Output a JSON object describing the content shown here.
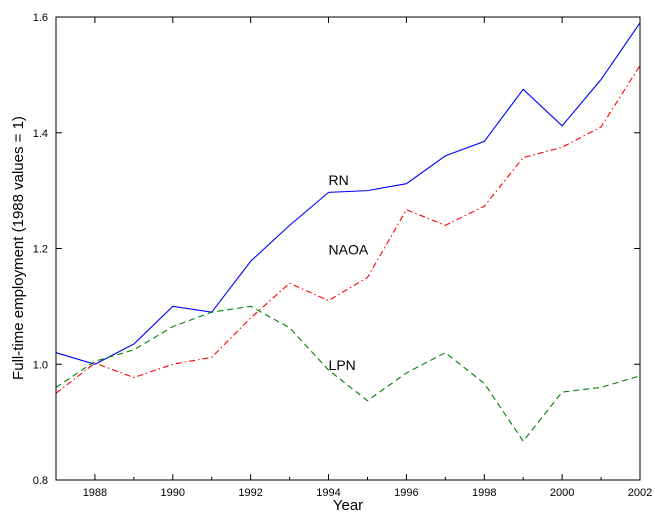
{
  "chart_data": {
    "type": "line",
    "title": "",
    "xlabel": "Year",
    "ylabel": "Full-time employment (1988 values = 1)",
    "xlim": [
      1987,
      2002
    ],
    "ylim": [
      0.8,
      1.6
    ],
    "x_ticks": [
      1988,
      1990,
      1992,
      1994,
      1996,
      1998,
      2000,
      2002
    ],
    "y_ticks": [
      0.8,
      1.0,
      1.2,
      1.4,
      1.6
    ],
    "x_tick_labels": [
      "1988",
      "1990",
      "1992",
      "1994",
      "1996",
      "1998",
      "2000",
      "2002"
    ],
    "y_tick_labels": [
      "0.8",
      "1.0",
      "1.2",
      "1.4",
      "1.6"
    ],
    "grid": false,
    "legend": "none",
    "x": [
      1987,
      1988,
      1989,
      1990,
      1991,
      1992,
      1993,
      1994,
      1995,
      1996,
      1997,
      1998,
      1999,
      2000,
      2001,
      2002
    ],
    "series": [
      {
        "name": "RN",
        "color": "#0000ff",
        "dash": "solid",
        "label_at": [
          1994,
          1.31
        ],
        "values": [
          1.02,
          1.0,
          1.035,
          1.1,
          1.09,
          1.178,
          1.24,
          1.297,
          1.3,
          1.312,
          1.36,
          1.385,
          1.475,
          1.412,
          1.492,
          1.59
        ]
      },
      {
        "name": "NAOA",
        "color": "#ff0000",
        "dash": "dashdot",
        "label_at": [
          1994,
          1.19
        ],
        "values": [
          0.95,
          1.002,
          0.977,
          1.0,
          1.012,
          1.08,
          1.14,
          1.11,
          1.15,
          1.267,
          1.24,
          1.273,
          1.357,
          1.375,
          1.41,
          1.516
        ]
      },
      {
        "name": "LPN",
        "color": "#008000",
        "dash": "dashed",
        "label_at": [
          1994,
          0.99
        ],
        "values": [
          0.96,
          1.005,
          1.025,
          1.065,
          1.09,
          1.1,
          1.063,
          0.99,
          0.937,
          0.985,
          1.02,
          0.967,
          0.867,
          0.952,
          0.96,
          0.98
        ]
      }
    ]
  }
}
